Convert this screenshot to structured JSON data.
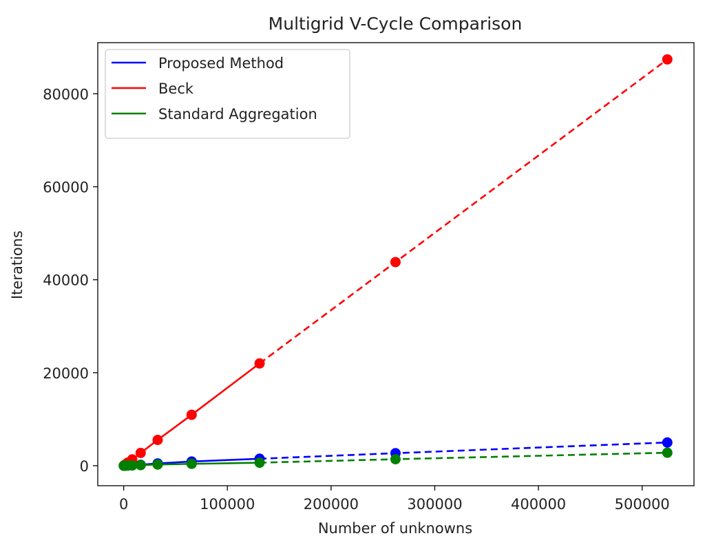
{
  "chart_data": {
    "type": "line",
    "title": "Multigrid V-Cycle Comparison",
    "xlabel": "Number of unknowns",
    "ylabel": "Iterations",
    "xlim": [
      -25000,
      550000
    ],
    "ylim": [
      -4300,
      91000
    ],
    "xticks": [
      0,
      100000,
      200000,
      300000,
      400000,
      500000
    ],
    "yticks": [
      0,
      20000,
      40000,
      60000,
      80000
    ],
    "xtick_labels": [
      "0",
      "100000",
      "200000",
      "300000",
      "400000",
      "500000"
    ],
    "ytick_labels": [
      "0",
      "20000",
      "40000",
      "60000",
      "80000"
    ],
    "grid": false,
    "legend_position": "top-left",
    "x": [
      128,
      256,
      512,
      1024,
      2048,
      4096,
      8192,
      16384,
      32768,
      65536,
      131072,
      262144,
      524288
    ],
    "solid_until_index": 10,
    "series": [
      {
        "name": "Proposed Method",
        "color": "#0000ff",
        "values": [
          10,
          12,
          15,
          20,
          30,
          50,
          90,
          200,
          500,
          900,
          1500,
          2700,
          5000
        ]
      },
      {
        "name": "Beck",
        "color": "#ff0000",
        "values": [
          20,
          40,
          85,
          170,
          340,
          680,
          1360,
          2750,
          5550,
          10950,
          22000,
          43800,
          87400
        ]
      },
      {
        "name": "Standard Aggregation",
        "color": "#008000",
        "values": [
          5,
          6,
          8,
          10,
          15,
          30,
          60,
          120,
          250,
          400,
          650,
          1400,
          2800
        ]
      }
    ]
  }
}
